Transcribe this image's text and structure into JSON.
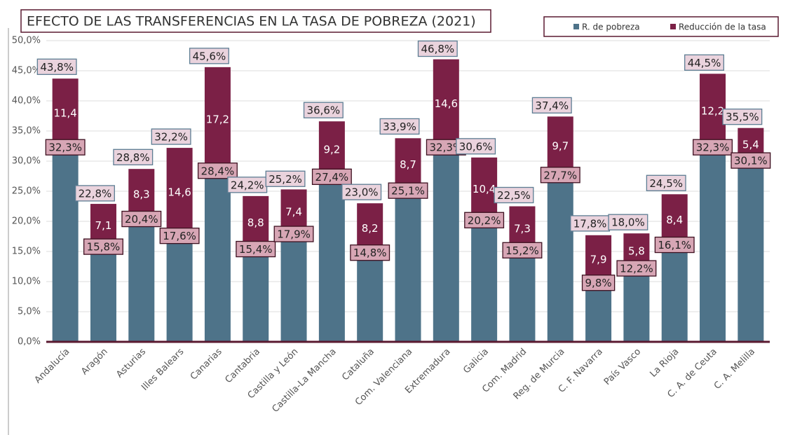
{
  "chart_data": {
    "type": "stacked_bar",
    "title": "EFECTO DE LAS TRANSFERENCIAS EN LA TASA DE POBREZA (2021)",
    "categories": [
      "Andalucía",
      "Aragón",
      "Asturias",
      "Illes Balears",
      "Canarias",
      "Cantabria",
      "Castilla y León",
      "Castilla-La Mancha",
      "Cataluña",
      "Com. Valenciana",
      "Extremadura",
      "Galicia",
      "Com. Madrid",
      "Reg. de Murcia",
      "C. F. Navarra",
      "País Vasco",
      "La Rioja",
      "C. A. de Ceuta",
      "C. A. Melilla"
    ],
    "series": [
      {
        "name": "R. de pobreza",
        "color": "#4e7389",
        "values": [
          32.3,
          15.8,
          20.4,
          17.6,
          28.4,
          15.4,
          17.9,
          27.4,
          14.8,
          25.1,
          32.3,
          20.2,
          15.2,
          27.7,
          9.8,
          12.2,
          16.1,
          32.3,
          30.1
        ],
        "value_labels": [
          "32,3%",
          "15,8%",
          "20,4%",
          "17,6%",
          "28,4%",
          "15,4%",
          "17,9%",
          "27,4%",
          "14,8%",
          "25,1%",
          "32,3%",
          "20,2%",
          "15,2%",
          "27,7%",
          "9,8%",
          "12,2%",
          "16,1%",
          "32,3%",
          "30,1%"
        ]
      },
      {
        "name": "Reducción de la tasa",
        "color": "#7b2046",
        "values": [
          11.4,
          7.1,
          8.3,
          14.6,
          17.2,
          8.8,
          7.4,
          9.2,
          8.2,
          8.7,
          14.6,
          10.4,
          7.3,
          9.7,
          7.9,
          5.8,
          8.4,
          12.2,
          5.4
        ],
        "value_labels": [
          "11,4",
          "7,1",
          "8,3",
          "14,6",
          "17,2",
          "8,8",
          "7,4",
          "9,2",
          "8,2",
          "8,7",
          "14,6",
          "10,4",
          "7,3",
          "9,7",
          "7,9",
          "5,8",
          "8,4",
          "12,2",
          "5,4"
        ]
      }
    ],
    "totals": {
      "values": [
        43.8,
        22.8,
        28.8,
        32.2,
        45.6,
        24.2,
        25.2,
        36.6,
        23.0,
        33.9,
        46.8,
        30.6,
        22.5,
        37.4,
        17.8,
        18.0,
        24.5,
        44.5,
        35.5
      ],
      "value_labels": [
        "43,8%",
        "22,8%",
        "28,8%",
        "32,2%",
        "45,6%",
        "24,2%",
        "25,2%",
        "36,6%",
        "23,0%",
        "33,9%",
        "46,8%",
        "30,6%",
        "22,5%",
        "37,4%",
        "17,8%",
        "18,0%",
        "24,5%",
        "44,5%",
        "35,5%"
      ]
    },
    "ylim": [
      0,
      50
    ],
    "yticks": [
      {
        "value": 0,
        "label": "0,0%"
      },
      {
        "value": 5,
        "label": "5,0%"
      },
      {
        "value": 10,
        "label": "10,0%"
      },
      {
        "value": 15,
        "label": "15,0%"
      },
      {
        "value": 20,
        "label": "20,0%"
      },
      {
        "value": 25,
        "label": "25,0%"
      },
      {
        "value": 30,
        "label": "30,0%"
      },
      {
        "value": 35,
        "label": "35,0%"
      },
      {
        "value": 40,
        "label": "40,0%"
      },
      {
        "value": 45,
        "label": "45,0%"
      },
      {
        "value": 50,
        "label": "50,0%"
      }
    ],
    "grid": true
  }
}
